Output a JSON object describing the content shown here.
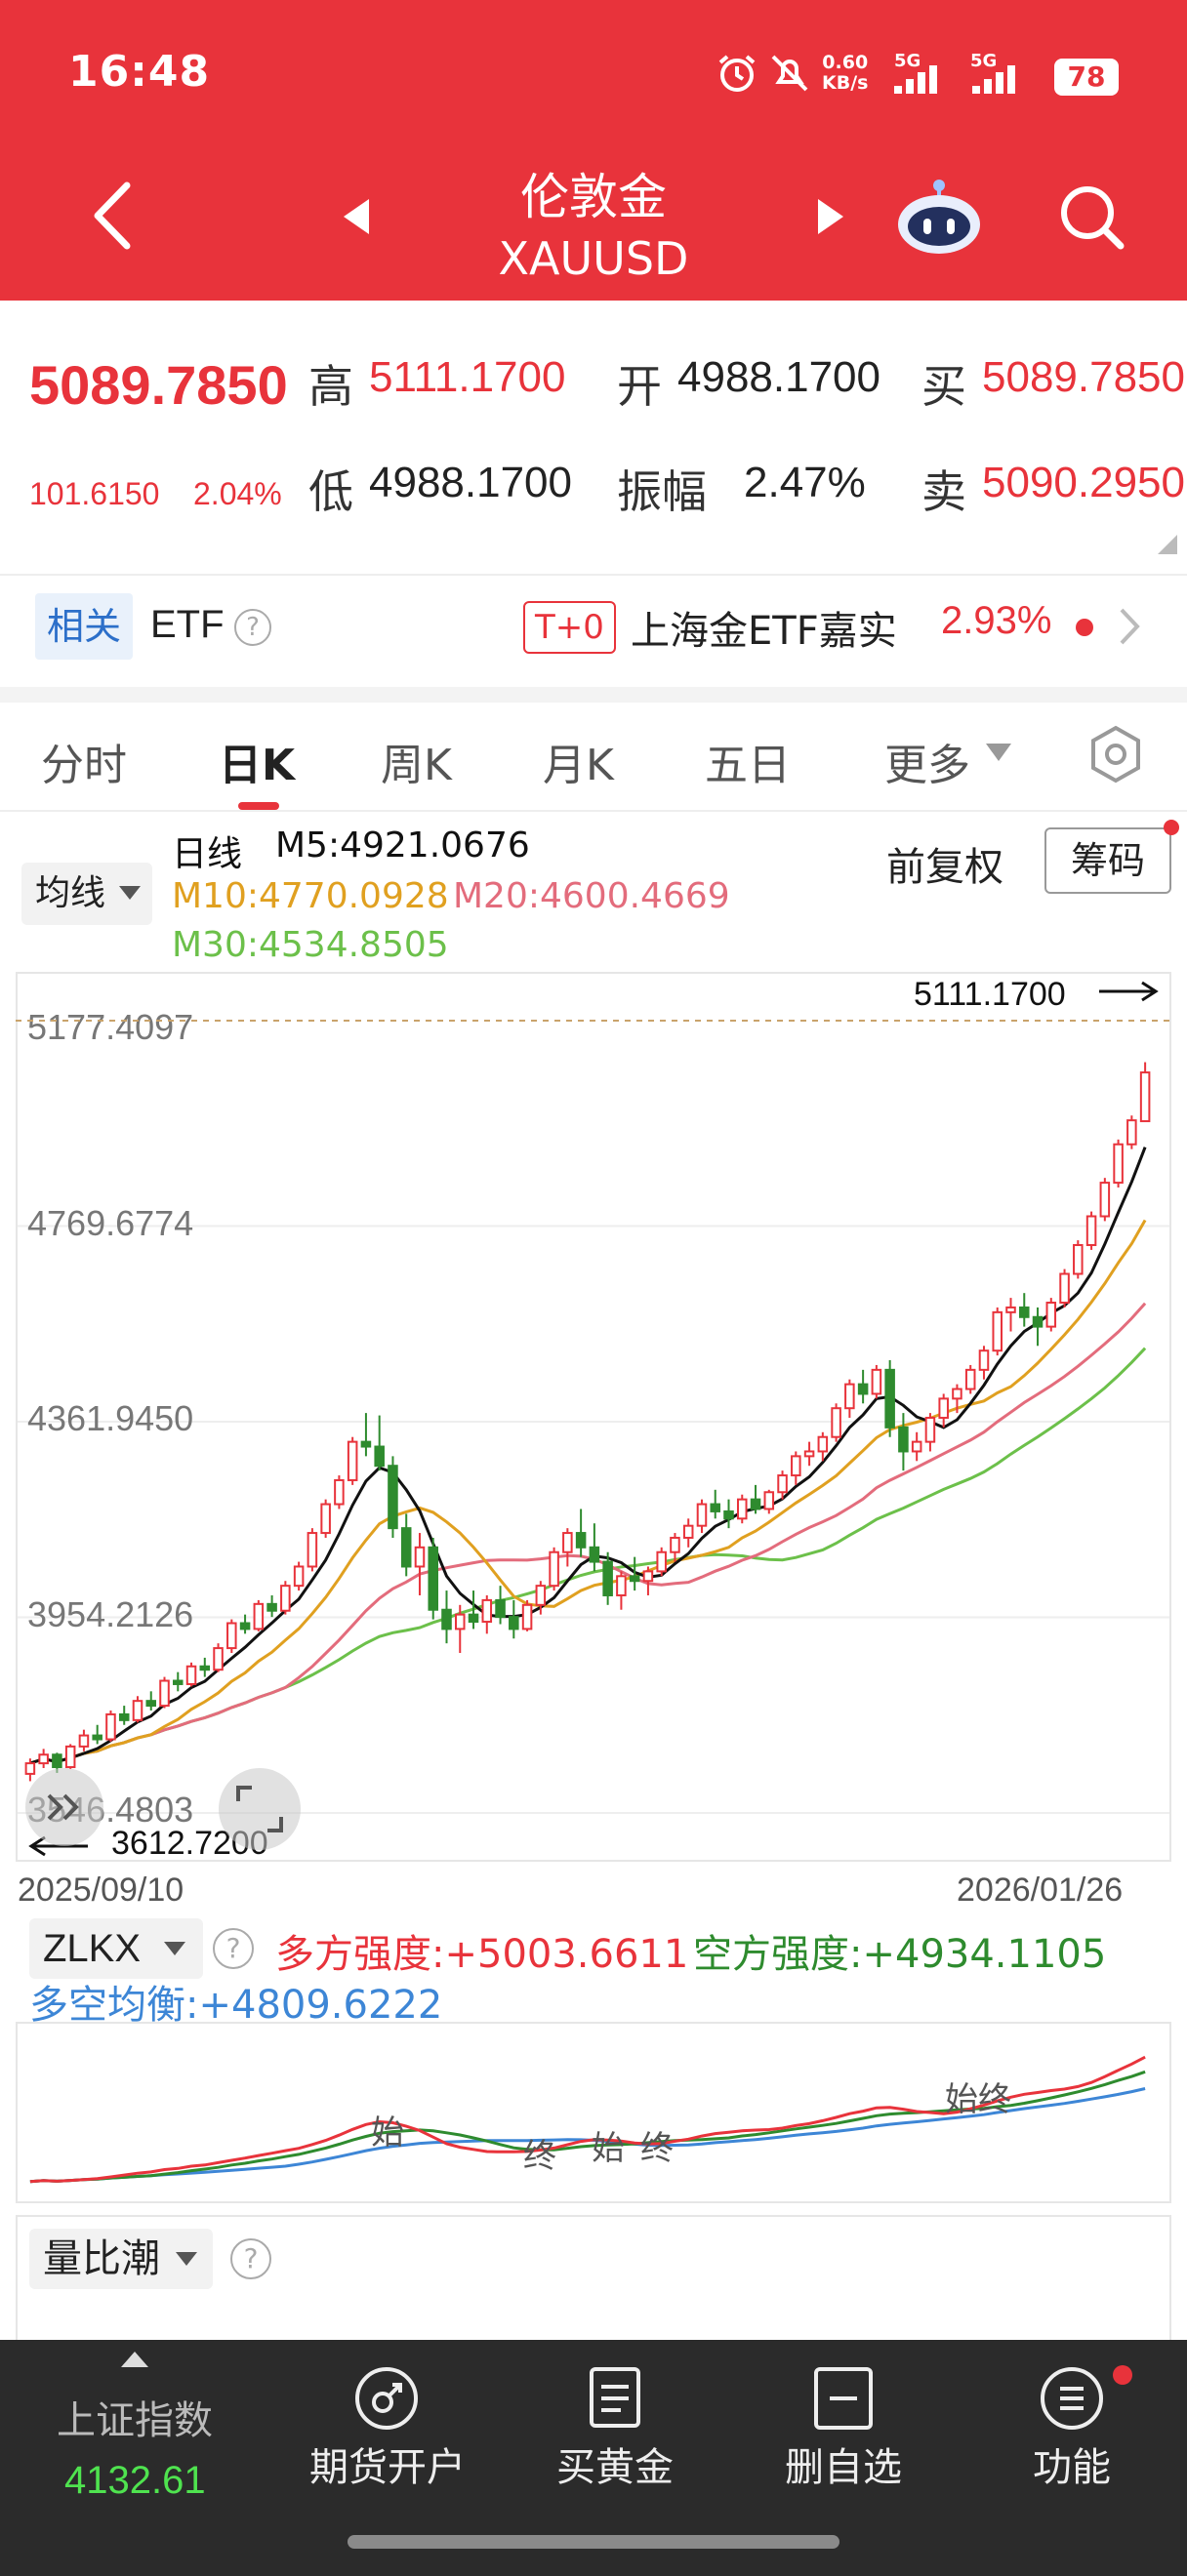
{
  "status_bar": {
    "time": "16:48",
    "net_speed_value": "0.60",
    "net_speed_unit": "KB/s",
    "signal1": "5G",
    "signal2": "5G",
    "battery": "78",
    "icons": [
      "alarm-icon",
      "mute-icon",
      "signal-icon",
      "battery-icon"
    ]
  },
  "title_bar": {
    "title": "伦敦金",
    "symbol": "XAUUSD",
    "icons": [
      "back-icon",
      "prev-icon",
      "next-icon",
      "robot-icon",
      "search-icon"
    ]
  },
  "quote": {
    "price": "5089.7850",
    "change": "101.6150",
    "change_pct": "2.04%",
    "high_label": "高",
    "high": "5111.1700",
    "low_label": "低",
    "low": "4988.1700",
    "open_label": "开",
    "open": "4988.1700",
    "amp_label": "振幅",
    "amp": "2.47%",
    "buy_label": "买",
    "buy": "5089.7850",
    "sell_label": "卖",
    "sell": "5090.2950"
  },
  "etf": {
    "tag": "相关",
    "label": "ETF",
    "t0": "T+0",
    "name": "上海金ETF嘉实",
    "pct": "2.93%"
  },
  "tabs": [
    "分时",
    "日K",
    "周K",
    "月K",
    "五日",
    "更多"
  ],
  "active_tab": "日K",
  "legend": {
    "ma_button": "均线",
    "period": "日线",
    "m5": "M5:4921.0676",
    "m10": "M10:4770.0928",
    "m20": "M20:4600.4669",
    "m30": "M30:4534.8505",
    "adj_label": "前复权",
    "chip_button": "筹码"
  },
  "colors": {
    "header": "#e8333b",
    "up": "#e8333b",
    "down": "#2e8b2e",
    "m5": "#111111",
    "m10": "#e0a020",
    "m20": "#e36c7c",
    "m30": "#6cc04a"
  },
  "chart_data": {
    "type": "candlestick",
    "y_ticks": [
      "5177.4097",
      "4769.6774",
      "4361.9450",
      "3954.2126",
      "3546.4803"
    ],
    "ylim": [
      3546.4803,
      5177.4097
    ],
    "x_start": "2025/09/10",
    "x_end": "2026/01/26",
    "max_marker": "5111.1700",
    "min_marker": "3612.7200",
    "candles_ohlc": [
      [
        3628,
        3660,
        3612.72,
        3650
      ],
      [
        3650,
        3680,
        3640,
        3668
      ],
      [
        3668,
        3672,
        3630,
        3642
      ],
      [
        3642,
        3690,
        3638,
        3685
      ],
      [
        3685,
        3720,
        3675,
        3708
      ],
      [
        3708,
        3730,
        3690,
        3700
      ],
      [
        3700,
        3760,
        3695,
        3752
      ],
      [
        3752,
        3770,
        3730,
        3740
      ],
      [
        3740,
        3790,
        3735,
        3780
      ],
      [
        3780,
        3800,
        3760,
        3770
      ],
      [
        3770,
        3830,
        3765,
        3822
      ],
      [
        3822,
        3840,
        3800,
        3815
      ],
      [
        3815,
        3860,
        3810,
        3852
      ],
      [
        3852,
        3870,
        3830,
        3845
      ],
      [
        3845,
        3900,
        3840,
        3890
      ],
      [
        3890,
        3950,
        3880,
        3942
      ],
      [
        3942,
        3960,
        3920,
        3930
      ],
      [
        3930,
        3990,
        3925,
        3982
      ],
      [
        3982,
        4000,
        3955,
        3968
      ],
      [
        3968,
        4030,
        3960,
        4020
      ],
      [
        4020,
        4070,
        4010,
        4060
      ],
      [
        4060,
        4140,
        4050,
        4130
      ],
      [
        4130,
        4200,
        4120,
        4190
      ],
      [
        4190,
        4250,
        4180,
        4240
      ],
      [
        4240,
        4330,
        4230,
        4320
      ],
      [
        4320,
        4380,
        4290,
        4310
      ],
      [
        4310,
        4375,
        4260,
        4270
      ],
      [
        4270,
        4290,
        4120,
        4140
      ],
      [
        4140,
        4170,
        4040,
        4060
      ],
      [
        4060,
        4130,
        4000,
        4100
      ],
      [
        4100,
        4120,
        3950,
        3970
      ],
      [
        3970,
        4010,
        3900,
        3930
      ],
      [
        3930,
        3980,
        3880,
        3960
      ],
      [
        3960,
        4010,
        3930,
        3945
      ],
      [
        3945,
        4000,
        3920,
        3990
      ],
      [
        3990,
        4020,
        3940,
        3955
      ],
      [
        3955,
        3990,
        3910,
        3930
      ],
      [
        3930,
        3990,
        3925,
        3980
      ],
      [
        3980,
        4030,
        3960,
        4020
      ],
      [
        4020,
        4100,
        4010,
        4090
      ],
      [
        4090,
        4140,
        4060,
        4130
      ],
      [
        4130,
        4180,
        4080,
        4100
      ],
      [
        4100,
        4150,
        4050,
        4070
      ],
      [
        4070,
        4090,
        3980,
        4000
      ],
      [
        4000,
        4050,
        3970,
        4040
      ],
      [
        4040,
        4080,
        4010,
        4030
      ],
      [
        4030,
        4060,
        4000,
        4050
      ],
      [
        4050,
        4100,
        4040,
        4090
      ],
      [
        4090,
        4130,
        4070,
        4120
      ],
      [
        4120,
        4160,
        4100,
        4145
      ],
      [
        4145,
        4200,
        4130,
        4190
      ],
      [
        4190,
        4220,
        4160,
        4175
      ],
      [
        4175,
        4200,
        4140,
        4160
      ],
      [
        4160,
        4210,
        4150,
        4200
      ],
      [
        4200,
        4230,
        4170,
        4180
      ],
      [
        4180,
        4220,
        4170,
        4215
      ],
      [
        4215,
        4260,
        4200,
        4250
      ],
      [
        4250,
        4300,
        4230,
        4290
      ],
      [
        4290,
        4320,
        4270,
        4300
      ],
      [
        4300,
        4340,
        4280,
        4330
      ],
      [
        4330,
        4400,
        4320,
        4390
      ],
      [
        4390,
        4450,
        4370,
        4440
      ],
      [
        4440,
        4470,
        4400,
        4420
      ],
      [
        4420,
        4480,
        4410,
        4470
      ],
      [
        4470,
        4490,
        4330,
        4350
      ],
      [
        4350,
        4380,
        4260,
        4300
      ],
      [
        4300,
        4340,
        4280,
        4320
      ],
      [
        4320,
        4380,
        4300,
        4370
      ],
      [
        4370,
        4420,
        4350,
        4410
      ],
      [
        4410,
        4440,
        4380,
        4430
      ],
      [
        4430,
        4480,
        4420,
        4470
      ],
      [
        4470,
        4520,
        4450,
        4510
      ],
      [
        4510,
        4600,
        4500,
        4590
      ],
      [
        4590,
        4620,
        4550,
        4600
      ],
      [
        4600,
        4630,
        4560,
        4580
      ],
      [
        4580,
        4600,
        4520,
        4560
      ],
      [
        4560,
        4620,
        4550,
        4610
      ],
      [
        4610,
        4680,
        4600,
        4670
      ],
      [
        4670,
        4740,
        4660,
        4730
      ],
      [
        4730,
        4800,
        4720,
        4790
      ],
      [
        4790,
        4870,
        4780,
        4860
      ],
      [
        4860,
        4950,
        4850,
        4940
      ],
      [
        4940,
        5000,
        4930,
        4990
      ],
      [
        4988.17,
        5111.17,
        4988.17,
        5089.785
      ]
    ]
  },
  "indicator": {
    "name": "ZLKX",
    "long_strength": "多方强度:+5003.6611",
    "short_strength": "空方强度:+4934.1105",
    "balance": "多空均衡:+4809.6222",
    "labels": [
      "始",
      "终",
      "始",
      "终",
      "始终"
    ]
  },
  "indicator2": {
    "name": "量比潮"
  },
  "bottom_nav": {
    "index_name": "上证指数",
    "index_value": "4132.61",
    "items": [
      "期货开户",
      "买黄金",
      "删自选",
      "功能"
    ]
  }
}
